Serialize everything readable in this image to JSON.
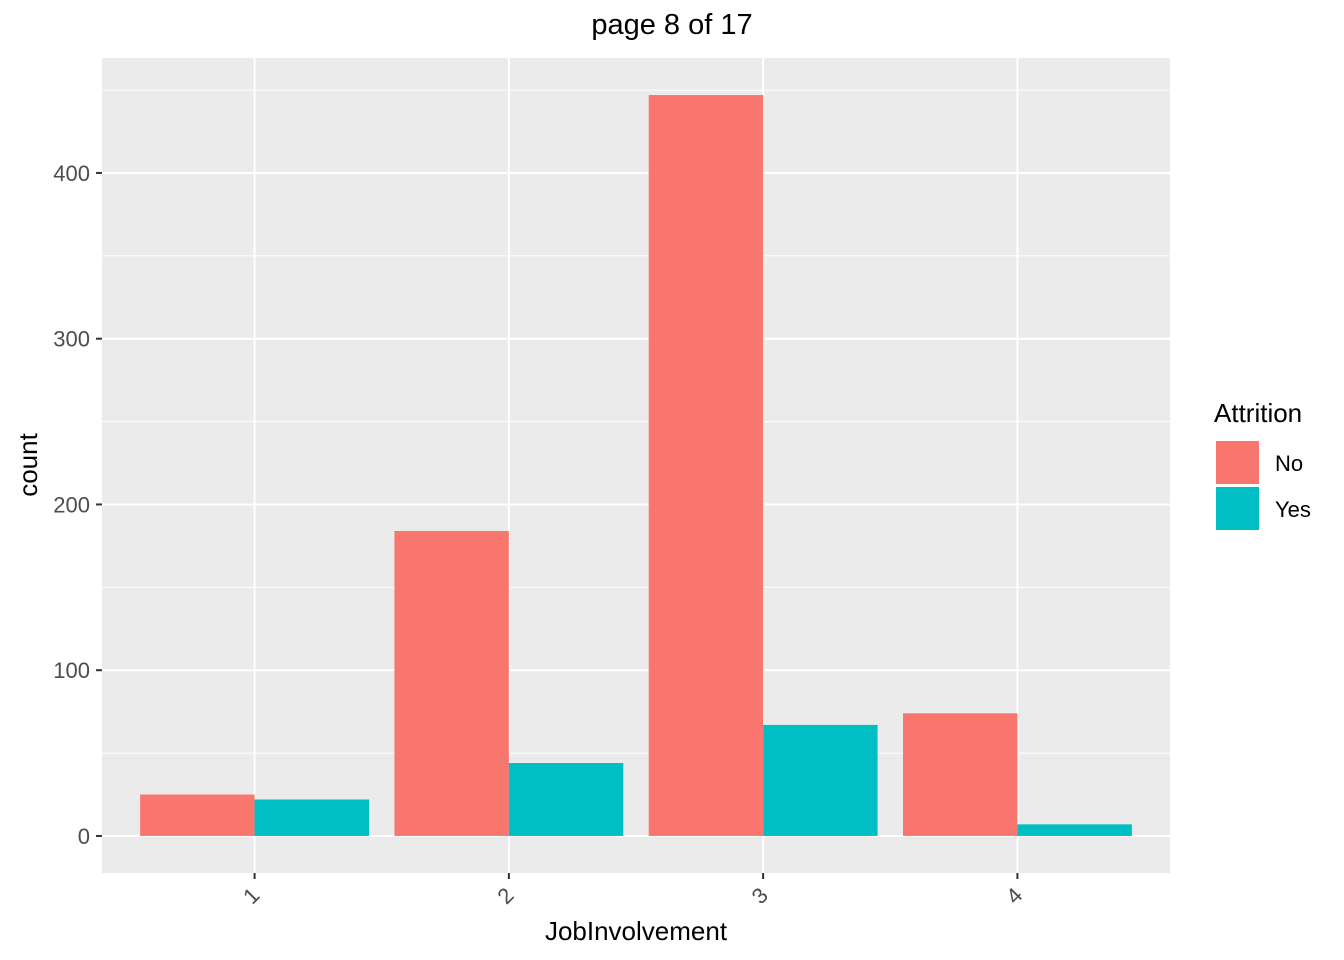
{
  "chart_data": {
    "type": "bar",
    "title": "page 8 of 17",
    "xlabel": "JobInvolvement",
    "ylabel": "count",
    "categories": [
      "1",
      "2",
      "3",
      "4"
    ],
    "series": [
      {
        "name": "No",
        "values": [
          25,
          184,
          447,
          74
        ],
        "color": "#F8766D"
      },
      {
        "name": "Yes",
        "values": [
          22,
          44,
          67,
          7
        ],
        "color": "#00BFC4"
      }
    ],
    "ylim": [
      -22.35,
      469.35
    ],
    "yticks": [
      0,
      100,
      200,
      300,
      400
    ],
    "legend": {
      "title": "Attrition",
      "position": "right"
    },
    "grid": true,
    "panel_background": "#EBEBEB",
    "gridline_color": "#FFFFFF",
    "x_tick_rotation_deg": -45
  }
}
